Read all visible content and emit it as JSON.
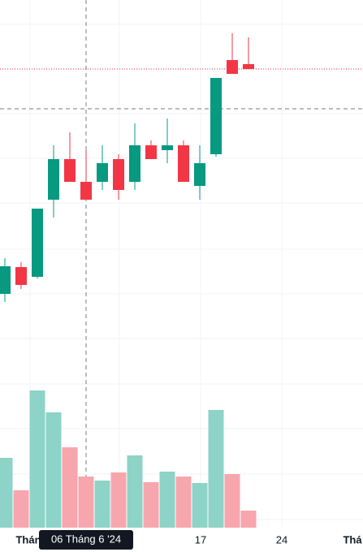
{
  "chart_data": {
    "type": "candlestick",
    "open": [
      318,
      351,
      339,
      434,
      484,
      456,
      456,
      484,
      456,
      501,
      495,
      501,
      451,
      490,
      606,
      601
    ],
    "high": [
      362,
      357,
      423,
      501,
      517,
      495,
      501,
      490,
      528,
      507,
      534,
      507,
      501,
      584,
      639,
      634
    ],
    "low": [
      308,
      324,
      337,
      412,
      456,
      434,
      446,
      434,
      446,
      484,
      479,
      456,
      434,
      487,
      589,
      595
    ],
    "close": [
      352,
      329,
      423,
      484,
      456,
      434,
      479,
      446,
      501,
      484,
      501,
      456,
      479,
      584,
      589,
      595
    ],
    "volume": [
      86,
      46,
      169,
      142,
      99,
      63,
      58,
      68,
      89,
      56,
      69,
      63,
      55,
      145,
      66,
      21
    ],
    "ylim": [
      0,
      680
    ],
    "volume_ylim": [
      0,
      650
    ],
    "up_color": "#089981",
    "down_color": "#f23645",
    "volume_up_color": "#8dd3c7",
    "volume_down_color": "#f7a6ae",
    "xtick_labels": [
      "Thán",
      "17",
      "24",
      "Thá"
    ],
    "crosshair_label": "06 Tháng 6 '24"
  }
}
